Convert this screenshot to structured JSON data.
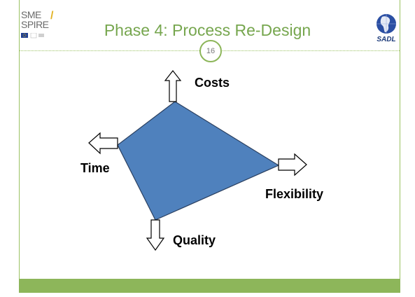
{
  "slide": {
    "title": "Phase 4: Process Re-Design",
    "page_number": "16"
  },
  "logos": {
    "left_line1": "SME",
    "left_line2": "SPIRE",
    "right_text": "SADL"
  },
  "diagram": {
    "labels": {
      "top": "Costs",
      "left": "Time",
      "right": "Flexibility",
      "bottom": "Quality"
    }
  },
  "colors": {
    "accent_green": "#8db65a",
    "title_green": "#76a64e",
    "shape_fill": "#4f81bd",
    "shape_stroke": "#2a3f5f"
  }
}
